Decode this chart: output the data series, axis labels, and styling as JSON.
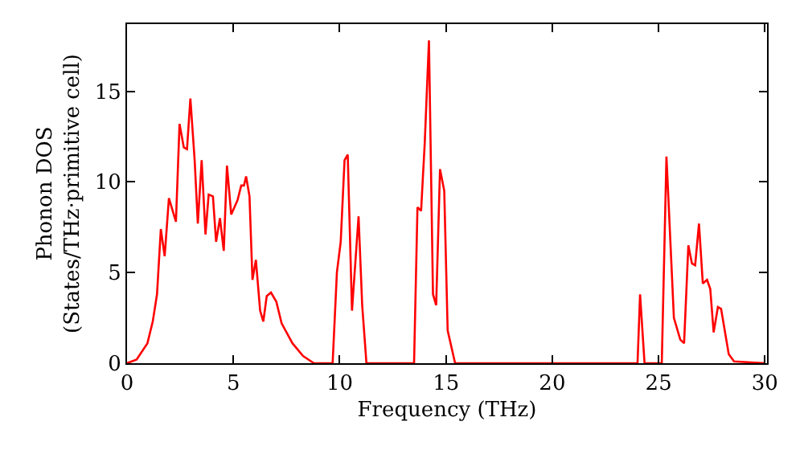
{
  "chart_data": {
    "type": "line",
    "xlabel": "Frequency (THz)",
    "ylabel": "Phonon DOS\n(States/THz·primitive cell)",
    "xlim": [
      0,
      30.1
    ],
    "ylim": [
      0,
      18.7
    ],
    "xticks": [
      0,
      5,
      10,
      15,
      20,
      25,
      30
    ],
    "yticks": [
      0,
      5,
      10,
      15
    ],
    "series": [
      {
        "color": "#ff0000",
        "x": [
          0,
          0.45,
          0.96,
          1.21,
          1.41,
          1.59,
          1.77,
          1.97,
          2.3,
          2.47,
          2.67,
          2.82,
          2.98,
          3.18,
          3.33,
          3.51,
          3.69,
          3.84,
          4.04,
          4.19,
          4.37,
          4.55,
          4.7,
          4.9,
          5.2,
          5.37,
          5.5,
          5.6,
          5.76,
          5.9,
          6.06,
          6.26,
          6.41,
          6.57,
          6.77,
          7.02,
          7.27,
          7.78,
          8.28,
          8.79,
          9.67,
          9.87,
          10.05,
          10.23,
          10.38,
          10.58,
          10.89,
          11.06,
          11.26,
          13.5,
          13.66,
          13.83,
          14.0,
          14.2,
          14.39,
          14.54,
          14.72,
          14.92,
          15.08,
          15.43,
          24.01,
          24.13,
          24.34,
          25.15,
          25.37,
          25.72,
          26.02,
          26.2,
          26.4,
          26.57,
          26.72,
          26.9,
          27.08,
          27.28,
          27.43,
          27.59,
          27.79,
          27.94,
          28.3,
          28.55,
          30.0
        ],
        "values": [
          0,
          0.2,
          1.1,
          2.3,
          3.8,
          7.4,
          5.9,
          9.1,
          7.8,
          13.2,
          11.9,
          11.8,
          14.6,
          11.2,
          7.7,
          11.2,
          7.1,
          9.3,
          9.2,
          6.7,
          8.0,
          6.2,
          10.9,
          8.2,
          9.0,
          9.8,
          9.8,
          10.3,
          9.2,
          4.6,
          5.7,
          2.9,
          2.3,
          3.7,
          3.9,
          3.4,
          2.2,
          1.1,
          0.4,
          0,
          0,
          5.0,
          6.7,
          11.2,
          11.5,
          2.9,
          8.1,
          3.2,
          0,
          0,
          8.6,
          8.4,
          12.1,
          17.8,
          3.8,
          3.2,
          10.7,
          9.5,
          1.8,
          0,
          0,
          3.8,
          0,
          0,
          11.4,
          2.5,
          1.3,
          1.1,
          6.5,
          5.5,
          5.4,
          7.7,
          4.4,
          4.6,
          4.1,
          1.7,
          3.1,
          3.0,
          0.5,
          0.1,
          0
        ]
      }
    ]
  }
}
